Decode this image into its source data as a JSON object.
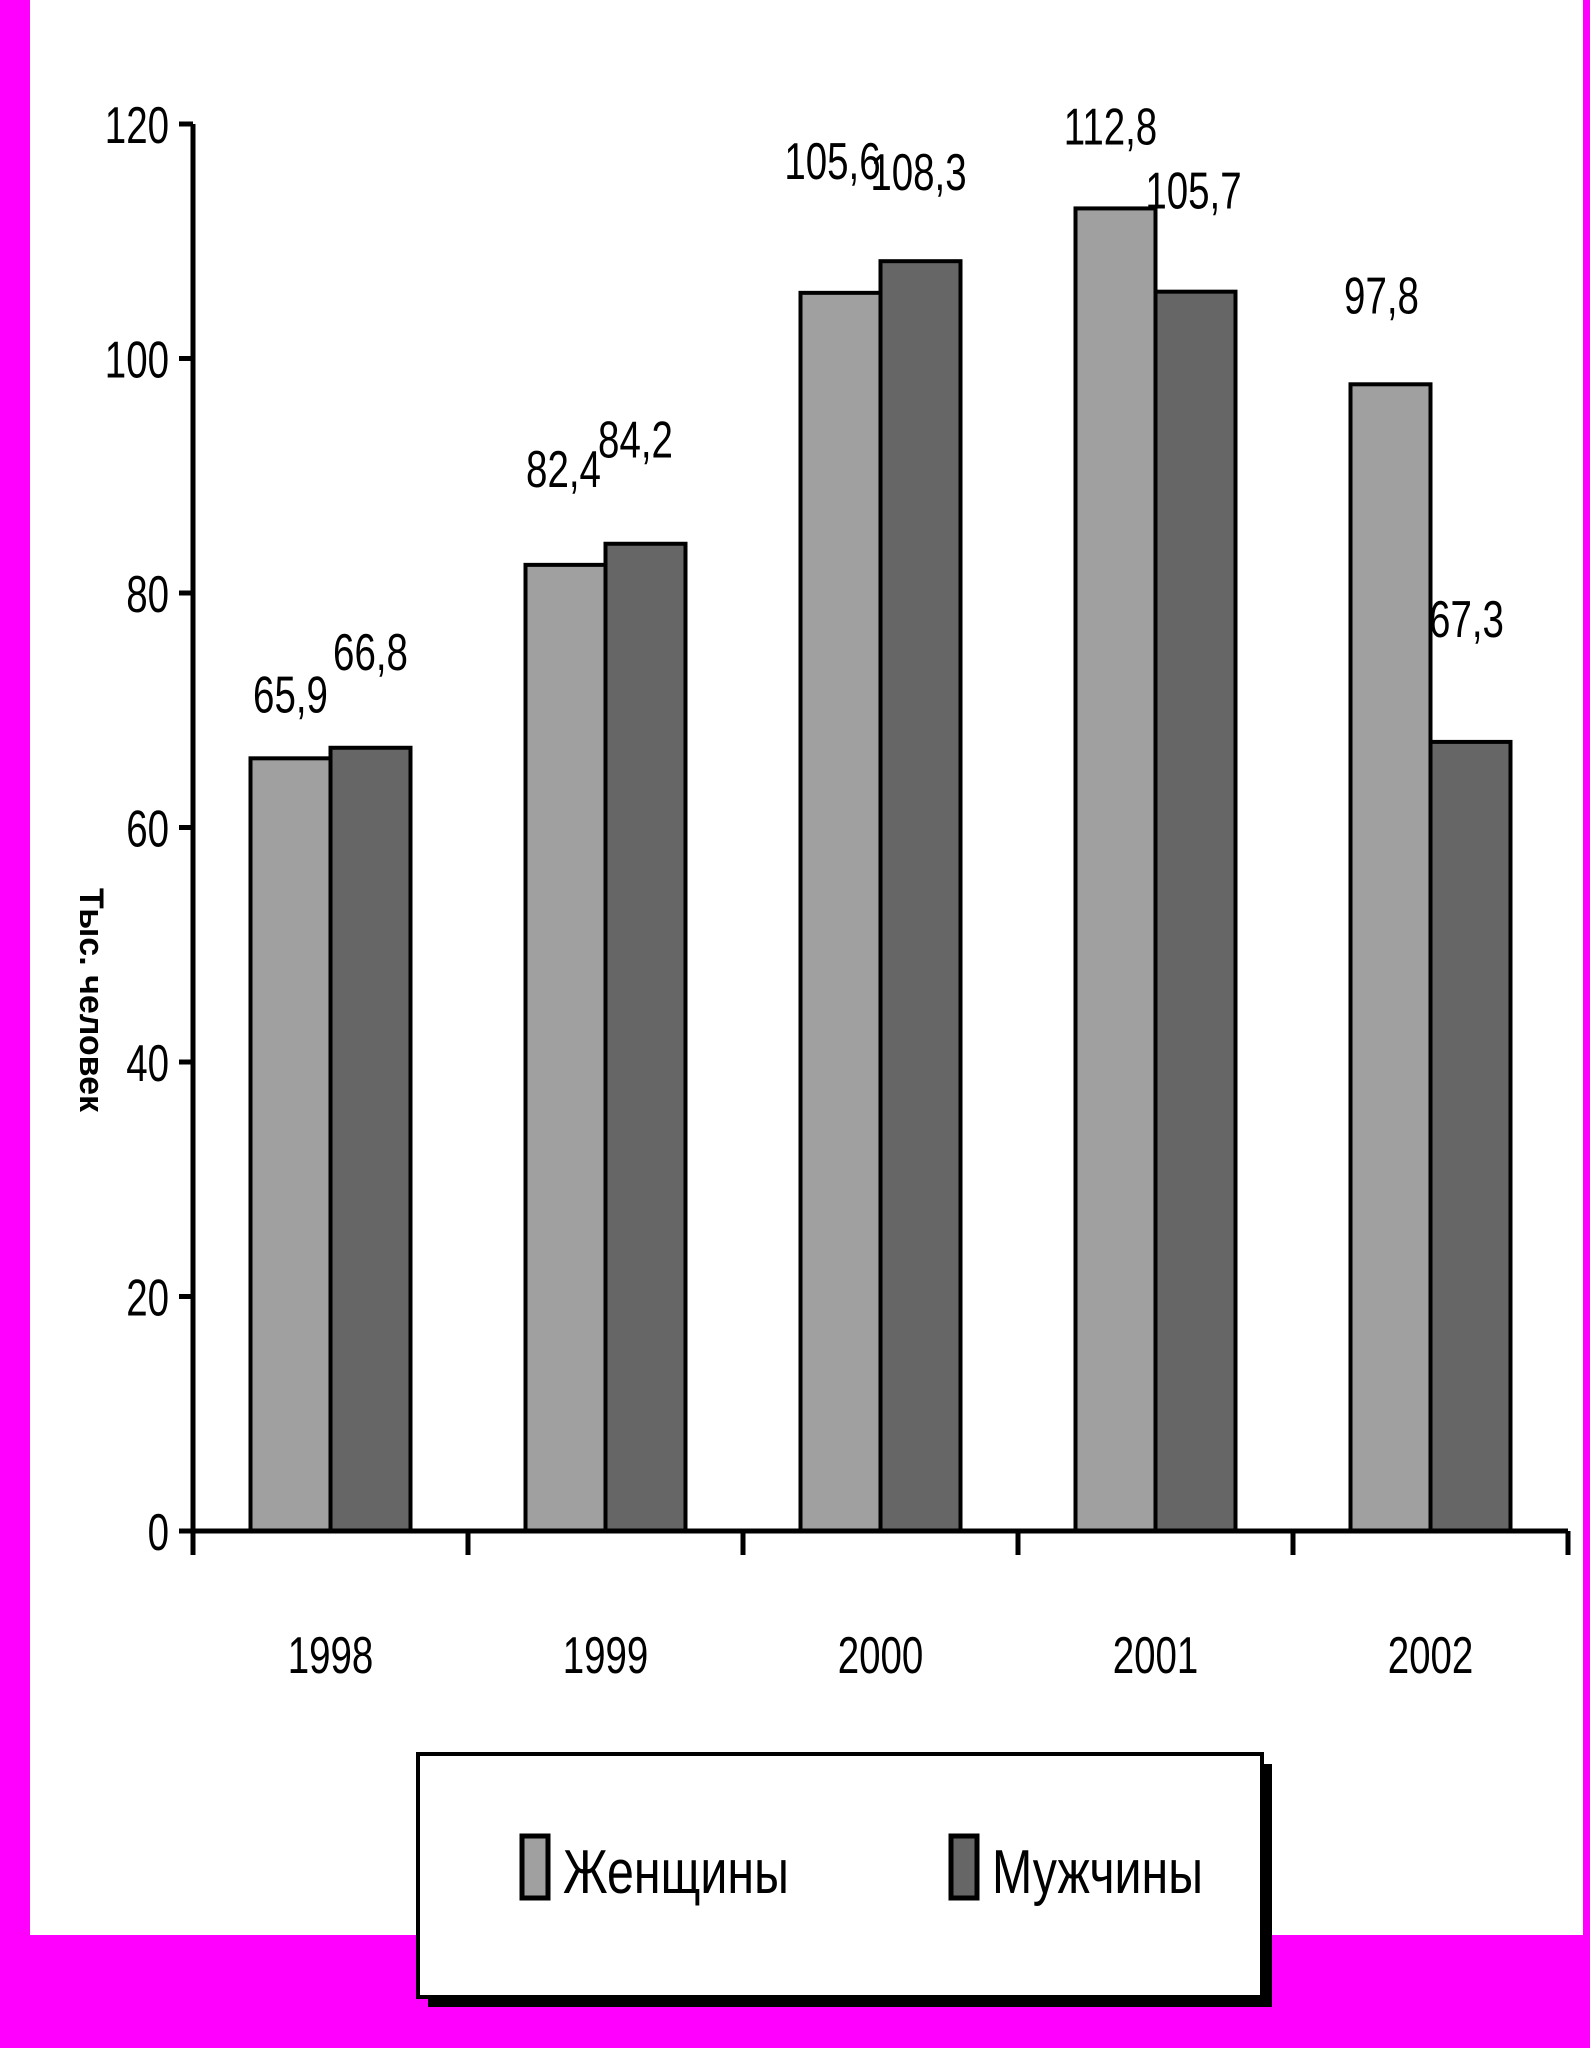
{
  "chart_data": {
    "type": "bar",
    "title": "",
    "xlabel": "",
    "ylabel": "Тыс. человек",
    "categories": [
      "1998",
      "1999",
      "2000",
      "2001",
      "2002"
    ],
    "series": [
      {
        "name": "Женщины",
        "color": "#A0A0A0",
        "values": [
          65.9,
          82.4,
          105.6,
          112.8,
          97.8
        ],
        "labels": [
          "65,9",
          "82,4",
          "105,6",
          "112,8",
          "97,8"
        ]
      },
      {
        "name": "Мужчины",
        "color": "#666666",
        "values": [
          66.8,
          84.2,
          108.3,
          105.7,
          67.3
        ],
        "labels": [
          "66,8",
          "84,2",
          "108,3",
          "105,7",
          "67,3"
        ]
      }
    ],
    "ylim": [
      0,
      120
    ],
    "yticks": [
      "0",
      "20",
      "40",
      "60",
      "80",
      "100",
      "120"
    ],
    "grid": false,
    "legend_position": "bottom",
    "background_color": "#FF00FF",
    "plot_background_color": "#FFFFFF"
  }
}
